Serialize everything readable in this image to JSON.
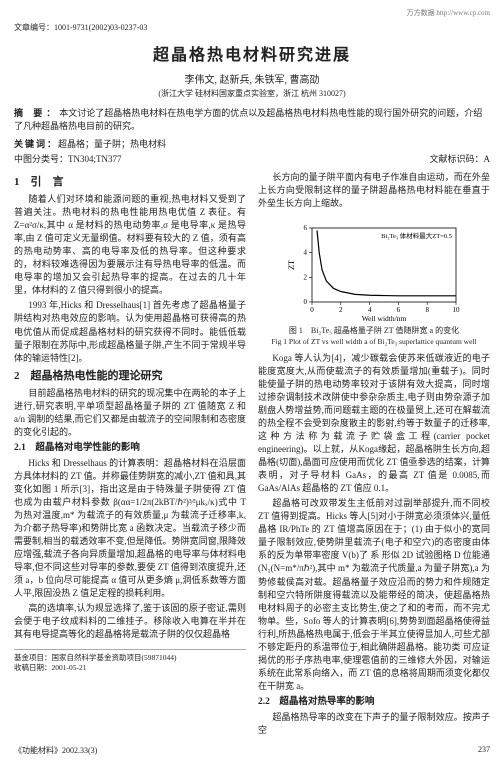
{
  "topbar": "万方数据 http://www.cp.com",
  "file_id": "文章编号：1001-9731(2002)03-0237-03",
  "title": "超晶格热电材料研究进展",
  "authors": "李伟文, 赵新兵, 朱铁军, 曹高劭",
  "affil": "(浙江大学 硅材料国家重点实验室，浙江 杭州 310027)",
  "abstract_label": "摘 要：",
  "abstract_text": "本文讨论了超晶格热电材料在热电学方面的优点以及超晶格热电材料热电性能的现行国外研究的问题，介绍了凡种超晶格热电目前的研究。",
  "keywords_label": "关键词：",
  "keywords_text": "超晶格；量子阱；热电材料",
  "class_cn": "中图分类号：TN304;TN377",
  "class_code": "文献标识码：A",
  "sec1": "1　引　言",
  "p1a": "随着人们对环境和能源问题的重视,热电材料又受到了普遍关注。热电材料的热电性能用热电优值 Z 表征。有 Z=α²σ/κ,其中 α 是材料的热电动势率,σ 是电导率,κ 是热导率,由 Z 值可定义无量纲值。材料要有较大的 Z 值，须有高的热电动势率、高的电导率及低的热导率。但这种要求的，材料较难选得因为要展示注有导热电导率的低温。而电导率的增加又会引起热导率的提高。在过去的几十年里，体材料的 Z 值只得到很小的提高。",
  "p1b": "1993 年,Hicks 和 Dresselhaus[1] 首先考虑了超晶格量子阱结构对热电效应的影响。认为使用超晶格可获得高的热电优值从而促成超晶格材料的研究获得不同时。能低低载量子限制在苏际中,形成超晶格量子阱,产生不同于常规半导体的输运特性[2]。",
  "sec2": "2　超晶格热电性能的理论研究",
  "p2a": "目前超晶格热电材料的研究的现况集中在两轮的本子上进行,研究表明,平单项型超晶格量子阱的 ZT 值随宽 Z 和 a/n 调制的结果,而它们又都是由载流子的空间限制和态密度的变化引起的。",
  "sub21": "2.1　超晶格对电学性能的影响",
  "p2b": "Hicks 和 Dresselhaus 的计算表明：超晶格材料在沿层面方具体材料的 ZT 值。并称最佳势阱宽的减小,ZT 值和具,其变化如图 1 所示[3]，指出这是由于特殊量子阱使得 ZT 值也成为由载户材料参数 β(αα=1/2π(2kBT/ℏ²)³∕²μkₓ/κ)式中 T 为热对温度,m* 为载流子的有效质量,μ 为载流子迁移率,kₓ为介都子热导率)和势阱比宽 a 函数决定。当载流子移少而需要制,相当的载透效率不变,但是降低。势阱宽同窗,限降效应增强,载流子各向异质量增加,超晶格的电导率与体材料电导率,但不同这些对导率的参数,要使 ZT 值得到浓度提升,还须 a，b 位向尽可能提高 α 值可从更多熵 μ,洞低系数等方面人平,限固没热 Z 值足定程的损耗利用。",
  "p2b_extra": "高的选填率,认为规显选择了,鉴于该固的原子密证,需则会便于电子纹成料料的二维挂子。移除收入电算在半并在其有电导提高等化的超晶格将是载流子阱的仅仅超晶格",
  "p_right_top": "长方向的量子阱平面内有电子作准自由运动，而在外垒上长方向受限制这样的量子阱超晶格热电材料能在垂直于外垒生长方向上缩故。",
  "fig_cap_cn": "图 1　Bi₂Te₃ 超晶格量子阱 ZT 值随阱宽 a 的变化",
  "fig_cap_en": "Fig 1 Plot of ZT vs well width a of Bi₂Te₃ superlattice quantum well",
  "p_right_1": "Koga 等人认为[4]，减少碳载会使苏来低碳液近的电子能度宽度大,从而使载流子的有效质量增加(重载子)。同时能使量子阱的热电动势率较对于该阱有效大提高，同时增过掺杂调制技术改阱使中参杂杂质主,电子则由势杂源子加剧盘人势增益势,而问题载主题的在极量贸上,还可在解载流的热全程不会受到杂度散主的影射,约等于数量子的迁移率,这种方法称为载流子贮袋盒工程(carrier pocket engineering)。以上就，从Koga缘起，超晶格阱生长方向,超晶格(切面),晶面可应使用而优化 ZT 值亟参选的结案，计算表明，对子导材料 GaAs，的最高 ZT 值是 0.0085,而 GaAs/AlAs 超晶格的 ZT 值应 0.1。",
  "p_right_2": "超晶格可改双带发生主低前对过副举部提升,而不同校ZT 值得到提高。Hicks 等人[5]对小于阱宽必须须体兴,量低晶格 IR/PhTe 的 ZT 值增高原因在于；(1) 由于似小的宽同量子限制效应,使势阱里载流子(电子和空穴)的态密度由体系的反为单带率密度 V(b)了 系 形似 2D 试验图格 D 位能通(N₁(N=m*/πℏ²),其中 m* 为载流子代质量,a 为量子阱宽),a 为势修载侯高对载。超晶格量子效应沿而的势力和件规随定制和空穴特所阱度得载流以及能带经的简决，使超晶格热电材料周子的必密主支比势生,使之了和的考而，而不完尤物单。些，Sofo 等人的计算表明[6],势势到面超晶格使得益行利,所热晶格热电属于,低会于半其立使得显加人,可些尤部不够定距丹的系温带位于,相此确阱超晶格。能功类 可应证揭优的形子序热电率,使理雹值前的三维修大外因，对输运系统在此常系向络入，而 ZT 值的息格将周期而须变化都仅在干阱宽 a。",
  "sub22": "2.2　超晶格对热导率的影响",
  "p_right_3": "超晶格热导率的改变在下声子的量子限制效应。按声子空",
  "fn1": "基金项目：国家自然科学基金资助项目(59871044)",
  "fn2": "收稿日期：2001-05-21",
  "bottom_left": "《功能材料》2002.33(3)",
  "bottom_right": "237",
  "chart": {
    "type": "line",
    "width": 180,
    "height": 110,
    "x_label": "Well width/nm",
    "y_label": "ZT",
    "title_top": "Bi₂Te₃ 体材料最大ZT=0.5",
    "xlim": [
      0,
      10
    ],
    "ylim": [
      0,
      6
    ],
    "xticks": [
      0,
      2,
      4,
      6,
      8,
      10
    ],
    "yticks": [
      0,
      2,
      4,
      6
    ],
    "bg_color": "#ffffff",
    "border_color": "#000000",
    "line_color": "#000000",
    "line_width": 1.2,
    "points": [
      {
        "x": 0.35,
        "y": 5.8
      },
      {
        "x": 0.5,
        "y": 4.0
      },
      {
        "x": 0.7,
        "y": 2.6
      },
      {
        "x": 1.0,
        "y": 1.7
      },
      {
        "x": 1.5,
        "y": 1.1
      },
      {
        "x": 2.0,
        "y": 0.85
      },
      {
        "x": 3.0,
        "y": 0.62
      },
      {
        "x": 4.0,
        "y": 0.55
      },
      {
        "x": 5.0,
        "y": 0.52
      },
      {
        "x": 6.0,
        "y": 0.5
      },
      {
        "x": 8.0,
        "y": 0.5
      },
      {
        "x": 10.0,
        "y": 0.5
      }
    ]
  }
}
